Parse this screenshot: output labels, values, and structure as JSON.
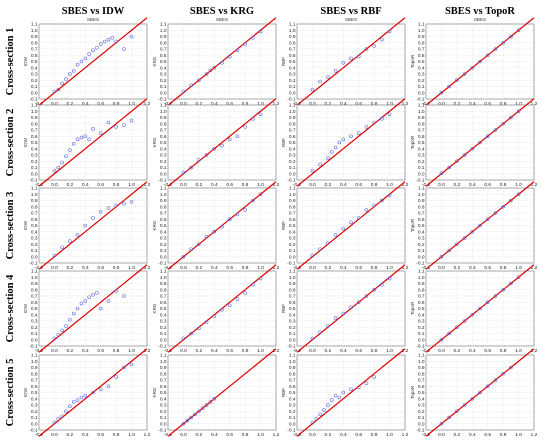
{
  "figure": {
    "column_titles": [
      "SBES vs IDW",
      "SBES vs KRG",
      "SBES vs RBF",
      "SBES vs TopoR"
    ],
    "row_labels": [
      "Cross-section 1",
      "Cross-section 2",
      "Cross-section 3",
      "Cross-section 4",
      "Cross-section 5"
    ],
    "top_axis_label": "SBES",
    "ylabels": [
      "IDW",
      "KRG",
      "RBF",
      "TopoR"
    ],
    "colors": {
      "fit_line": "#e00000",
      "points": "#5060e0",
      "grid": "#d6d6d6"
    }
  },
  "chart_data": {
    "type": "scatter",
    "grid": true,
    "xlim": [
      -0.2,
      1.2
    ],
    "ylim": [
      -0.1,
      1.1
    ],
    "xticks": [
      "-0.2",
      "0.0",
      "0.2",
      "0.4",
      "0.6",
      "0.8",
      "1.0",
      "1.2"
    ],
    "yticks": [
      "1.1",
      "1.0",
      "0.9",
      "0.8",
      "0.7",
      "0.6",
      "0.5",
      "0.4",
      "0.3",
      "0.2",
      "0.1",
      "0.0",
      "-0.1"
    ],
    "reference_line": {
      "from": [
        -0.2,
        -0.2
      ],
      "to": [
        1.2,
        1.2
      ]
    },
    "panels": [
      [
        {
          "xlabel": "SBES",
          "ylabel": "IDW",
          "x": [
            0.0,
            0.05,
            0.1,
            0.15,
            0.2,
            0.25,
            0.3,
            0.35,
            0.4,
            0.45,
            0.5,
            0.55,
            0.6,
            0.65,
            0.7,
            0.75,
            0.8,
            0.9,
            1.0
          ],
          "y": [
            0.02,
            0.05,
            0.15,
            0.22,
            0.3,
            0.35,
            0.45,
            0.5,
            0.55,
            0.62,
            0.68,
            0.72,
            0.78,
            0.82,
            0.85,
            0.88,
            0.82,
            0.7,
            0.9
          ]
        },
        {
          "xlabel": "SBES",
          "ylabel": "KRG",
          "x": [
            0.0,
            0.1,
            0.2,
            0.3,
            0.35,
            0.4,
            0.5,
            0.6,
            0.7,
            0.8,
            0.9,
            1.0
          ],
          "y": [
            0.02,
            0.12,
            0.2,
            0.3,
            0.36,
            0.4,
            0.48,
            0.58,
            0.68,
            0.78,
            0.88,
            0.98
          ]
        },
        {
          "xlabel": "SBES",
          "ylabel": "RBF",
          "x": [
            0.0,
            0.1,
            0.2,
            0.3,
            0.4,
            0.5,
            0.6,
            0.7,
            0.8,
            0.9,
            1.0
          ],
          "y": [
            0.05,
            0.18,
            0.25,
            0.35,
            0.48,
            0.55,
            0.58,
            0.7,
            0.75,
            0.85,
            0.98
          ]
        },
        {
          "xlabel": "SBES",
          "ylabel": "TopoR",
          "x": [
            0.0,
            0.1,
            0.2,
            0.3,
            0.4,
            0.5,
            0.6,
            0.7,
            0.8,
            0.9,
            1.0
          ],
          "y": [
            0.0,
            0.1,
            0.2,
            0.3,
            0.4,
            0.5,
            0.6,
            0.7,
            0.8,
            0.9,
            1.0
          ]
        }
      ],
      [
        {
          "xlabel": "SBES",
          "ylabel": "IDW",
          "x": [
            0.0,
            0.05,
            0.1,
            0.15,
            0.2,
            0.25,
            0.3,
            0.35,
            0.4,
            0.45,
            0.5,
            0.6,
            0.7,
            0.8,
            0.9,
            1.0
          ],
          "y": [
            0.05,
            0.1,
            0.18,
            0.28,
            0.38,
            0.48,
            0.55,
            0.58,
            0.6,
            0.55,
            0.72,
            0.65,
            0.82,
            0.75,
            0.78,
            0.85
          ]
        },
        {
          "xlabel": "SBES",
          "ylabel": "KRG",
          "x": [
            0.0,
            0.1,
            0.2,
            0.3,
            0.4,
            0.5,
            0.6,
            0.7,
            0.8,
            0.9,
            1.0
          ],
          "y": [
            0.02,
            0.1,
            0.22,
            0.3,
            0.4,
            0.45,
            0.55,
            0.6,
            0.75,
            0.88,
            0.95
          ]
        },
        {
          "xlabel": "SBES",
          "ylabel": "RBF",
          "x": [
            0.0,
            0.1,
            0.2,
            0.25,
            0.3,
            0.35,
            0.4,
            0.5,
            0.6,
            0.7,
            0.8,
            0.9,
            1.0
          ],
          "y": [
            0.05,
            0.15,
            0.25,
            0.35,
            0.42,
            0.5,
            0.55,
            0.6,
            0.65,
            0.75,
            0.82,
            0.88,
            0.95
          ]
        },
        {
          "xlabel": "SBES",
          "ylabel": "TopoR",
          "x": [
            0.0,
            0.1,
            0.2,
            0.3,
            0.4,
            0.5,
            0.6,
            0.7,
            0.8,
            0.9,
            1.0
          ],
          "y": [
            0.01,
            0.1,
            0.2,
            0.3,
            0.4,
            0.5,
            0.6,
            0.7,
            0.8,
            0.9,
            1.0
          ]
        }
      ],
      [
        {
          "xlabel": "SBES",
          "ylabel": "IDW",
          "x": [
            0.0,
            0.1,
            0.2,
            0.3,
            0.4,
            0.5,
            0.6,
            0.7,
            0.8,
            0.9,
            1.0
          ],
          "y": [
            0.02,
            0.15,
            0.25,
            0.35,
            0.5,
            0.62,
            0.72,
            0.78,
            0.82,
            0.85,
            0.88
          ]
        },
        {
          "xlabel": "SBES",
          "ylabel": "KRG",
          "x": [
            0.0,
            0.1,
            0.2,
            0.3,
            0.4,
            0.5,
            0.6,
            0.7,
            0.8,
            0.9,
            1.0
          ],
          "y": [
            0.0,
            0.12,
            0.2,
            0.32,
            0.4,
            0.48,
            0.6,
            0.68,
            0.75,
            0.9,
            1.0
          ]
        },
        {
          "xlabel": "SBES",
          "ylabel": "RBF",
          "x": [
            0.0,
            0.1,
            0.2,
            0.3,
            0.4,
            0.5,
            0.6,
            0.7,
            0.8,
            0.9,
            1.0
          ],
          "y": [
            0.02,
            0.12,
            0.22,
            0.35,
            0.45,
            0.55,
            0.62,
            0.75,
            0.82,
            0.9,
            0.98
          ]
        },
        {
          "xlabel": "SBES",
          "ylabel": "TopoR",
          "x": [
            0.0,
            0.1,
            0.2,
            0.3,
            0.4,
            0.5,
            0.6,
            0.7,
            0.8,
            0.9,
            1.0
          ],
          "y": [
            0.0,
            0.1,
            0.2,
            0.3,
            0.4,
            0.5,
            0.6,
            0.7,
            0.8,
            0.9,
            1.0
          ]
        }
      ],
      [
        {
          "xlabel": "SBES",
          "ylabel": "IDW",
          "x": [
            0.0,
            0.05,
            0.1,
            0.15,
            0.2,
            0.25,
            0.3,
            0.35,
            0.4,
            0.45,
            0.5,
            0.55,
            0.6,
            0.7,
            0.8,
            0.9
          ],
          "y": [
            0.02,
            0.08,
            0.15,
            0.22,
            0.32,
            0.42,
            0.5,
            0.58,
            0.62,
            0.68,
            0.72,
            0.75,
            0.5,
            0.62,
            0.78,
            0.7
          ]
        },
        {
          "xlabel": "SBES",
          "ylabel": "KRG",
          "x": [
            0.0,
            0.1,
            0.2,
            0.3,
            0.4,
            0.5,
            0.6,
            0.7,
            0.8,
            0.9,
            1.0
          ],
          "y": [
            0.02,
            0.1,
            0.18,
            0.28,
            0.38,
            0.48,
            0.55,
            0.65,
            0.75,
            0.88,
            0.98
          ]
        },
        {
          "xlabel": "SBES",
          "ylabel": "RBF",
          "x": [
            0.0,
            0.1,
            0.2,
            0.3,
            0.4,
            0.5,
            0.6,
            0.7,
            0.8,
            0.9,
            1.0
          ],
          "y": [
            0.02,
            0.12,
            0.22,
            0.35,
            0.42,
            0.52,
            0.6,
            0.7,
            0.8,
            0.88,
            0.98
          ]
        },
        {
          "xlabel": "SBES",
          "ylabel": "TopoR",
          "x": [
            0.0,
            0.1,
            0.2,
            0.3,
            0.4,
            0.5,
            0.6,
            0.7,
            0.8,
            0.9,
            1.0
          ],
          "y": [
            0.0,
            0.1,
            0.2,
            0.3,
            0.4,
            0.5,
            0.6,
            0.7,
            0.8,
            0.9,
            1.0
          ]
        }
      ],
      [
        {
          "xlabel": "SBES",
          "ylabel": "IDW",
          "x": [
            0.0,
            0.05,
            0.1,
            0.15,
            0.2,
            0.25,
            0.3,
            0.35,
            0.4,
            0.5,
            0.6,
            0.7,
            0.8,
            0.9,
            1.0
          ],
          "y": [
            0.02,
            0.08,
            0.12,
            0.2,
            0.28,
            0.35,
            0.38,
            0.42,
            0.45,
            0.5,
            0.55,
            0.6,
            0.75,
            0.9,
            0.95
          ]
        },
        {
          "xlabel": "SBES",
          "ylabel": "KRG",
          "x": [
            0.0,
            0.05,
            0.1,
            0.15,
            0.2,
            0.25,
            0.3,
            0.35,
            0.4
          ],
          "y": [
            0.0,
            0.05,
            0.1,
            0.15,
            0.2,
            0.25,
            0.3,
            0.35,
            0.4
          ]
        },
        {
          "xlabel": "SBES",
          "ylabel": "RBF",
          "x": [
            0.0,
            0.05,
            0.1,
            0.15,
            0.2,
            0.25,
            0.3,
            0.35,
            0.4,
            0.5,
            0.6,
            0.7,
            0.8
          ],
          "y": [
            0.02,
            0.08,
            0.15,
            0.22,
            0.3,
            0.38,
            0.45,
            0.42,
            0.5,
            0.55,
            0.58,
            0.65,
            0.75
          ]
        },
        {
          "xlabel": "SBES",
          "ylabel": "TopoR",
          "x": [
            0.0,
            0.1,
            0.2,
            0.3,
            0.4,
            0.5,
            0.6,
            0.7,
            0.8,
            0.9
          ],
          "y": [
            0.0,
            0.1,
            0.2,
            0.3,
            0.4,
            0.5,
            0.6,
            0.7,
            0.8,
            0.9
          ]
        }
      ]
    ]
  }
}
